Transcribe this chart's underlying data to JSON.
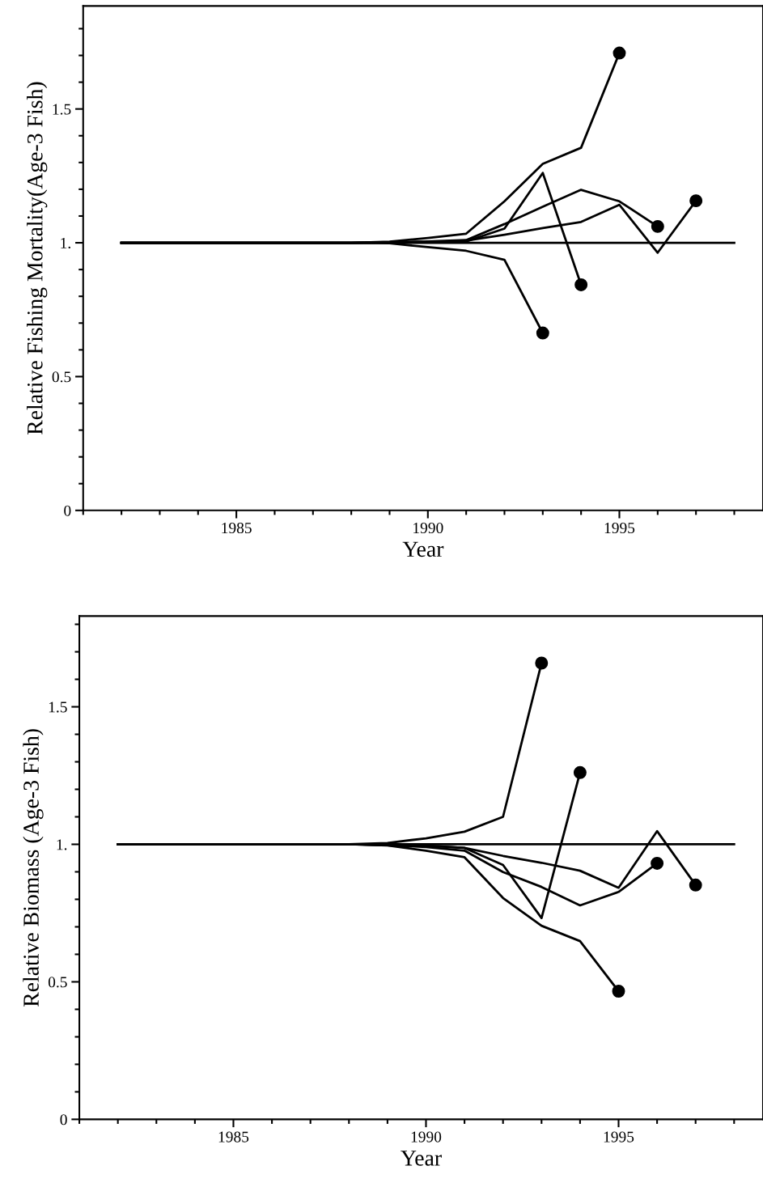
{
  "chart_data": [
    {
      "type": "line",
      "xlabel": "Year",
      "ylabel": "Relative Fishing Mortality(Age-3 Fish)",
      "xlim": [
        1981,
        1998.75
      ],
      "ylim": [
        0,
        1.885
      ],
      "xticks": [
        {
          "value": 1981,
          "label": null
        },
        {
          "value": 1982,
          "label": null
        },
        {
          "value": 1983,
          "label": null
        },
        {
          "value": 1984,
          "label": null
        },
        1985,
        {
          "value": 1986,
          "label": null
        },
        {
          "value": 1987,
          "label": null
        },
        {
          "value": 1988,
          "label": null
        },
        {
          "value": 1989,
          "label": null
        },
        1990,
        {
          "value": 1991,
          "label": null
        },
        {
          "value": 1992,
          "label": null
        },
        {
          "value": 1993,
          "label": null
        },
        {
          "value": 1994,
          "label": null
        },
        1995,
        {
          "value": 1996,
          "label": null
        },
        {
          "value": 1997,
          "label": null
        },
        {
          "value": 1998,
          "label": null
        }
      ],
      "yticks": [
        0,
        {
          "value": 0.1,
          "label": null
        },
        {
          "value": 0.2,
          "label": null
        },
        {
          "value": 0.3,
          "label": null
        },
        {
          "value": 0.4,
          "label": null
        },
        0.5,
        {
          "value": 0.6,
          "label": null
        },
        {
          "value": 0.7,
          "label": null
        },
        {
          "value": 0.8,
          "label": null
        },
        {
          "value": 0.9,
          "label": null
        },
        {
          "value": 1,
          "label": "1."
        },
        {
          "value": 1.1,
          "label": null
        },
        {
          "value": 1.2,
          "label": null
        },
        {
          "value": 1.3,
          "label": null
        },
        {
          "value": 1.4,
          "label": null
        },
        1.5,
        {
          "value": 1.6,
          "label": null
        },
        {
          "value": 1.7,
          "label": null
        },
        {
          "value": 1.8,
          "label": null
        }
      ],
      "series": [
        {
          "color": "#000000",
          "x": [
            1982,
            1983,
            1984,
            1985,
            1986,
            1987,
            1988,
            1989,
            1990,
            1991,
            1992,
            1993,
            1994,
            1995,
            1996,
            1997,
            1998
          ],
          "values": [
            1,
            1,
            1,
            1,
            1,
            1,
            1,
            1,
            1,
            1,
            1,
            1,
            1,
            1,
            1,
            1,
            1
          ]
        },
        {
          "color": "#000000",
          "x": [
            1982,
            1983,
            1984,
            1985,
            1986,
            1987,
            1988,
            1989,
            1990,
            1991,
            1992,
            1993
          ],
          "values": [
            1,
            1,
            1,
            1,
            1,
            1,
            1,
            0.998,
            0.984,
            0.97,
            0.936,
            0.663
          ]
        },
        {
          "color": "#000000",
          "x": [
            1982,
            1983,
            1984,
            1985,
            1986,
            1987,
            1988,
            1989,
            1990,
            1991,
            1992,
            1993,
            1994
          ],
          "values": [
            1,
            1,
            1,
            1,
            1,
            1,
            1,
            1.002,
            1.003,
            1.005,
            1.053,
            1.261,
            0.843
          ]
        },
        {
          "color": "#000000",
          "x": [
            1982,
            1983,
            1984,
            1985,
            1986,
            1987,
            1988,
            1989,
            1990,
            1991,
            1992,
            1993,
            1994,
            1995
          ],
          "values": [
            1,
            1,
            1,
            1,
            1,
            1,
            1,
            1.004,
            1.018,
            1.034,
            1.155,
            1.295,
            1.355,
            1.709
          ]
        },
        {
          "color": "#000000",
          "x": [
            1982,
            1983,
            1984,
            1985,
            1986,
            1987,
            1988,
            1989,
            1990,
            1991,
            1992,
            1993,
            1994,
            1995,
            1996
          ],
          "values": [
            1,
            1,
            1,
            1,
            1,
            1,
            1,
            1.002,
            1.005,
            1.01,
            1.07,
            1.135,
            1.198,
            1.155,
            1.061
          ]
        },
        {
          "color": "#000000",
          "x": [
            1982,
            1983,
            1984,
            1985,
            1986,
            1987,
            1988,
            1989,
            1990,
            1991,
            1992,
            1993,
            1994,
            1995,
            1996,
            1997
          ],
          "values": [
            1,
            1,
            1,
            1,
            1,
            1,
            1,
            1.001,
            1.003,
            1.008,
            1.03,
            1.055,
            1.078,
            1.142,
            0.963,
            1.157
          ]
        },
        {
          "type": "scatter",
          "marker": "circle",
          "color": "#000000",
          "x": [
            1993,
            1994,
            1995,
            1996,
            1997
          ],
          "values": [
            0.663,
            0.843,
            1.709,
            1.061,
            1.157
          ]
        }
      ]
    },
    {
      "type": "line",
      "xlabel": "Year",
      "ylabel": "Relative Biomass (Age-3 Fish)",
      "xlim": [
        1981,
        1998.75
      ],
      "ylim": [
        0,
        1.83
      ],
      "xticks": [
        {
          "value": 1981,
          "label": null
        },
        {
          "value": 1982,
          "label": null
        },
        {
          "value": 1983,
          "label": null
        },
        {
          "value": 1984,
          "label": null
        },
        1985,
        {
          "value": 1986,
          "label": null
        },
        {
          "value": 1987,
          "label": null
        },
        {
          "value": 1988,
          "label": null
        },
        {
          "value": 1989,
          "label": null
        },
        1990,
        {
          "value": 1991,
          "label": null
        },
        {
          "value": 1992,
          "label": null
        },
        {
          "value": 1993,
          "label": null
        },
        {
          "value": 1994,
          "label": null
        },
        1995,
        {
          "value": 1996,
          "label": null
        },
        {
          "value": 1997,
          "label": null
        },
        {
          "value": 1998,
          "label": null
        }
      ],
      "yticks": [
        0,
        {
          "value": 0.1,
          "label": null
        },
        {
          "value": 0.2,
          "label": null
        },
        {
          "value": 0.3,
          "label": null
        },
        {
          "value": 0.4,
          "label": null
        },
        0.5,
        {
          "value": 0.6,
          "label": null
        },
        {
          "value": 0.7,
          "label": null
        },
        {
          "value": 0.8,
          "label": null
        },
        {
          "value": 0.9,
          "label": null
        },
        {
          "value": 1,
          "label": "1."
        },
        {
          "value": 1.1,
          "label": null
        },
        {
          "value": 1.2,
          "label": null
        },
        {
          "value": 1.3,
          "label": null
        },
        {
          "value": 1.4,
          "label": null
        },
        1.5,
        {
          "value": 1.6,
          "label": null
        },
        {
          "value": 1.7,
          "label": null
        },
        {
          "value": 1.8,
          "label": null
        }
      ],
      "series": [
        {
          "color": "#000000",
          "x": [
            1982,
            1983,
            1984,
            1985,
            1986,
            1987,
            1988,
            1989,
            1990,
            1991,
            1992,
            1993,
            1994,
            1995,
            1996,
            1997,
            1998
          ],
          "values": [
            1,
            1,
            1,
            1,
            1,
            1,
            1,
            1,
            1,
            1,
            1,
            1,
            1,
            1,
            1,
            1,
            1
          ]
        },
        {
          "color": "#000000",
          "x": [
            1982,
            1983,
            1984,
            1985,
            1986,
            1987,
            1988,
            1989,
            1990,
            1991,
            1992,
            1993
          ],
          "values": [
            1,
            1,
            1,
            1,
            1,
            1,
            1,
            1.005,
            1.022,
            1.046,
            1.1,
            1.659
          ]
        },
        {
          "color": "#000000",
          "x": [
            1982,
            1983,
            1984,
            1985,
            1986,
            1987,
            1988,
            1989,
            1990,
            1991,
            1992,
            1993,
            1994
          ],
          "values": [
            1,
            1,
            1,
            1,
            1,
            1,
            1,
            0.998,
            0.995,
            0.987,
            0.925,
            0.732,
            1.261
          ]
        },
        {
          "color": "#000000",
          "x": [
            1982,
            1983,
            1984,
            1985,
            1986,
            1987,
            1988,
            1989,
            1990,
            1991,
            1992,
            1993,
            1994,
            1995
          ],
          "values": [
            1,
            1,
            1,
            1,
            1,
            1,
            1,
            0.996,
            0.977,
            0.953,
            0.805,
            0.704,
            0.648,
            0.466
          ]
        },
        {
          "color": "#000000",
          "x": [
            1982,
            1983,
            1984,
            1985,
            1986,
            1987,
            1988,
            1989,
            1990,
            1991,
            1992,
            1993,
            1994,
            1995,
            1996
          ],
          "values": [
            1,
            1,
            1,
            1,
            1,
            1,
            1,
            0.997,
            0.99,
            0.977,
            0.899,
            0.845,
            0.778,
            0.827,
            0.931
          ]
        },
        {
          "color": "#000000",
          "x": [
            1982,
            1983,
            1984,
            1985,
            1986,
            1987,
            1988,
            1989,
            1990,
            1991,
            1992,
            1993,
            1994,
            1995,
            1996,
            1997
          ],
          "values": [
            1,
            1,
            1,
            1,
            1,
            1,
            1,
            0.998,
            0.995,
            0.987,
            0.958,
            0.933,
            0.904,
            0.842,
            1.048,
            0.852
          ]
        },
        {
          "type": "scatter",
          "marker": "circle",
          "color": "#000000",
          "x": [
            1993,
            1994,
            1995,
            1996,
            1997
          ],
          "values": [
            1.659,
            1.261,
            0.466,
            0.931,
            0.852
          ]
        }
      ]
    }
  ]
}
